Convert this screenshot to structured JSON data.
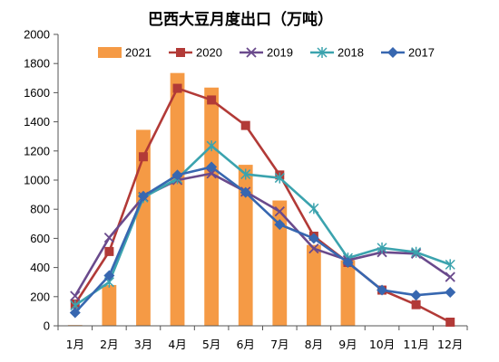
{
  "chart_data": {
    "type": "bar",
    "title": "巴西大豆月度出口（万吨）",
    "xlabel": "",
    "ylabel": "",
    "categories": [
      "1月",
      "2月",
      "3月",
      "4月",
      "5月",
      "6月",
      "7月",
      "8月",
      "9月",
      "10月",
      "11月",
      "12月"
    ],
    "ylim": [
      0,
      2000
    ],
    "yticks": [
      0,
      200,
      400,
      600,
      800,
      1000,
      1200,
      1400,
      1600,
      1800,
      2000
    ],
    "grid": false,
    "legend_position": "top",
    "series": [
      {
        "name": "2021",
        "kind": "bar",
        "color": "#F59A45",
        "marker": "bar",
        "values": [
          5,
          280,
          1345,
          1735,
          1635,
          1105,
          860,
          555,
          450,
          null,
          null,
          null
        ]
      },
      {
        "name": "2020",
        "kind": "line",
        "color": "#B23A37",
        "marker": "square",
        "values": [
          150,
          510,
          1160,
          1630,
          1550,
          1375,
          1035,
          615,
          435,
          245,
          145,
          25
        ]
      },
      {
        "name": "2019",
        "kind": "line",
        "color": "#6A4A8C",
        "marker": "x",
        "values": [
          205,
          605,
          885,
          1000,
          1045,
          920,
          785,
          530,
          450,
          505,
          495,
          335
        ]
      },
      {
        "name": "2018",
        "kind": "line",
        "color": "#3BA3AE",
        "marker": "star",
        "values": [
          140,
          300,
          880,
          1010,
          1235,
          1040,
          1015,
          805,
          465,
          535,
          505,
          420
        ]
      },
      {
        "name": "2017",
        "kind": "line",
        "color": "#3767B0",
        "marker": "diamond",
        "values": [
          90,
          345,
          890,
          1035,
          1090,
          915,
          695,
          600,
          435,
          245,
          210,
          230
        ]
      }
    ]
  }
}
